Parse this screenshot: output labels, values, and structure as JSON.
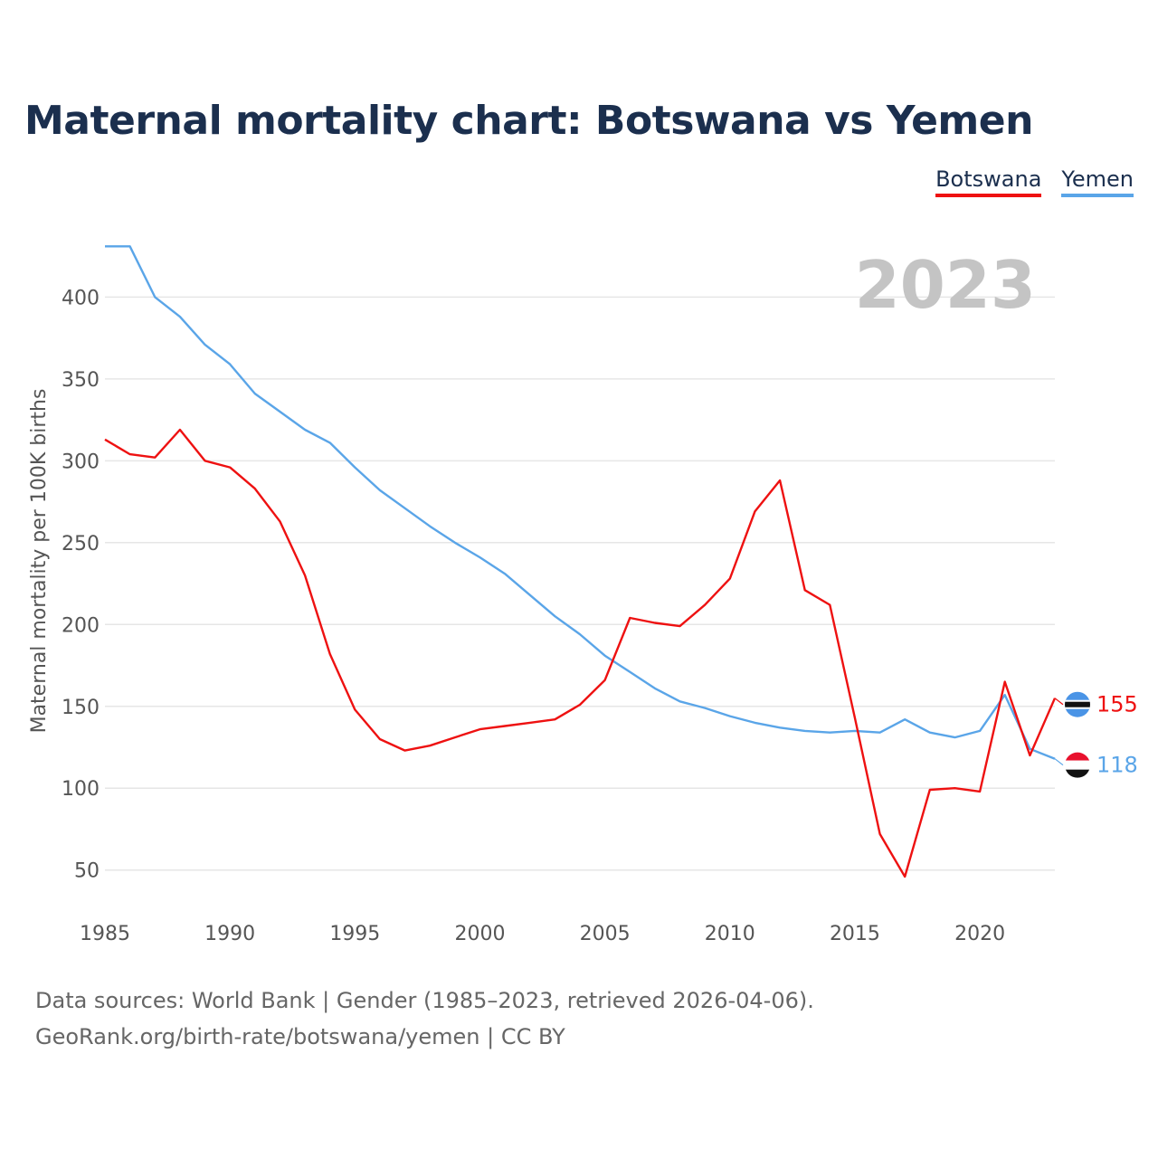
{
  "title": "Maternal mortality chart: Botswana vs Yemen",
  "legend": [
    {
      "name": "Botswana",
      "color": "#ee1111"
    },
    {
      "name": "Yemen",
      "color": "#5aa5e8"
    }
  ],
  "year_label": "2023",
  "footer": {
    "line1": "Data sources: World Bank | Gender (1985–2023, retrieved 2026-04-06).",
    "line2": "GeoRank.org/birth-rate/botswana/yemen | CC BY"
  },
  "chart_data": {
    "type": "line",
    "title": "Maternal mortality chart: Botswana vs Yemen",
    "xlabel": "",
    "ylabel": "Maternal mortality per 100K births",
    "xlim": [
      1985,
      2023
    ],
    "ylim": [
      20,
      440
    ],
    "x_ticks": [
      1985,
      1990,
      1995,
      2000,
      2005,
      2010,
      2015,
      2020
    ],
    "y_ticks": [
      50,
      100,
      150,
      200,
      250,
      300,
      350,
      400
    ],
    "grid": true,
    "x": [
      1985,
      1986,
      1987,
      1988,
      1989,
      1990,
      1991,
      1992,
      1993,
      1994,
      1995,
      1996,
      1997,
      1998,
      1999,
      2000,
      2001,
      2002,
      2003,
      2004,
      2005,
      2006,
      2007,
      2008,
      2009,
      2010,
      2011,
      2012,
      2013,
      2014,
      2015,
      2016,
      2017,
      2018,
      2019,
      2020,
      2021,
      2022,
      2023
    ],
    "series": [
      {
        "name": "Botswana",
        "color": "#ee1111",
        "end_label": "155",
        "values": [
          313,
          304,
          302,
          319,
          300,
          296,
          283,
          263,
          230,
          182,
          148,
          130,
          123,
          126,
          131,
          136,
          138,
          140,
          142,
          151,
          166,
          204,
          201,
          199,
          212,
          228,
          269,
          288,
          221,
          212,
          143,
          72,
          46,
          99,
          100,
          98,
          165,
          120,
          155
        ]
      },
      {
        "name": "Yemen",
        "color": "#5aa5e8",
        "end_label": "118",
        "values": [
          431,
          431,
          400,
          388,
          371,
          359,
          341,
          330,
          319,
          311,
          296,
          282,
          271,
          260,
          250,
          241,
          231,
          218,
          205,
          194,
          181,
          171,
          161,
          153,
          149,
          144,
          140,
          137,
          135,
          134,
          135,
          134,
          142,
          134,
          131,
          135,
          157,
          124,
          118
        ]
      }
    ]
  }
}
